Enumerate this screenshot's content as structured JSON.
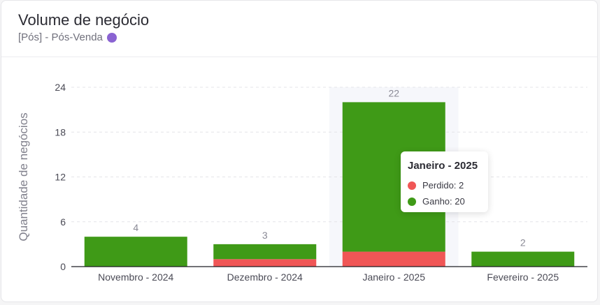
{
  "header": {
    "title": "Volume de negócio",
    "subtitle": "[Pós] - Pós-Venda",
    "pipeline_color": "#8a63d2"
  },
  "chart_data": {
    "type": "bar",
    "stacked": true,
    "categories": [
      "Novembro - 2024",
      "Dezembro - 2024",
      "Janeiro - 2025",
      "Fevereiro - 2025"
    ],
    "series": [
      {
        "name": "Perdido",
        "values": [
          0,
          1,
          2,
          0
        ],
        "color": "#f05656"
      },
      {
        "name": "Ganho",
        "values": [
          4,
          2,
          20,
          2
        ],
        "color": "#3f9a17"
      }
    ],
    "totals": [
      4,
      3,
      22,
      2
    ],
    "ylabel": "Quantidade de negócios",
    "ylim": [
      0,
      24
    ],
    "yticks": [
      0,
      6,
      12,
      18,
      24
    ],
    "grid": true,
    "highlight_category_index": 2
  },
  "tooltip": {
    "title": "Janeiro - 2025",
    "rows": [
      {
        "label": "Perdido: 2",
        "color": "#f05656"
      },
      {
        "label": "Ganho: 20",
        "color": "#3f9a17"
      }
    ]
  }
}
